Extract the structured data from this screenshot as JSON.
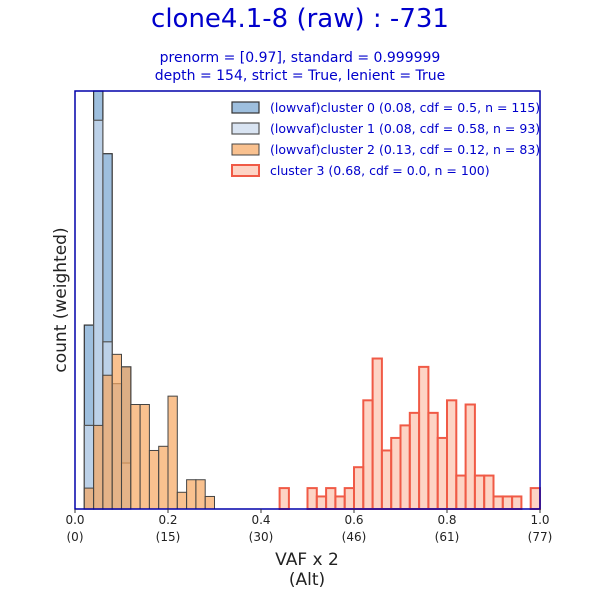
{
  "chart_data": {
    "type": "histogram",
    "title": "clone4.1-8 (raw) : -731",
    "subtitle_lines": [
      "prenorm = [0.97], standard = 0.999999",
      "depth = 154, strict = True, lenient = True"
    ],
    "xlabel_lines": [
      "VAF x 2",
      "(Alt)"
    ],
    "ylabel": "count (weighted)",
    "xlim": [
      0.0,
      1.0
    ],
    "ylim": [
      0,
      10.0
    ],
    "grid": false,
    "legend_position": "top-right",
    "bin_width": 0.02,
    "x_ticks": [
      {
        "value": 0.0,
        "label": "0.0",
        "sub": "(0)"
      },
      {
        "value": 0.2,
        "label": "0.2",
        "sub": "(15)"
      },
      {
        "value": 0.4,
        "label": "0.4",
        "sub": "(30)"
      },
      {
        "value": 0.6,
        "label": "0.6",
        "sub": "(46)"
      },
      {
        "value": 0.8,
        "label": "0.8",
        "sub": "(61)"
      },
      {
        "value": 1.0,
        "label": "1.0",
        "sub": "(77)"
      }
    ],
    "series": [
      {
        "name": "(lowvaf)cluster 0 (0.08, cdf = 0.5, n = 115)",
        "fill": "#8db4d8",
        "fill_opacity": 0.85,
        "stroke": "#333333",
        "stroke_width": 1.2,
        "bins": [
          [
            0.03,
            4.4
          ],
          [
            0.05,
            10.0
          ],
          [
            0.07,
            8.5
          ],
          [
            0.09,
            3.0
          ],
          [
            0.11,
            3.4
          ]
        ]
      },
      {
        "name": "(lowvaf)cluster 1 (0.08, cdf = 0.58, n = 93)",
        "fill": "#c9d8ec",
        "fill_opacity": 0.7,
        "stroke": "#555555",
        "stroke_width": 1.2,
        "bins": [
          [
            0.03,
            2.0
          ],
          [
            0.05,
            9.3
          ],
          [
            0.07,
            4.0
          ],
          [
            0.09,
            3.0
          ],
          [
            0.11,
            1.1
          ]
        ]
      },
      {
        "name": "(lowvaf)cluster 2 (0.13, cdf = 0.12, n = 83)",
        "fill": "#f7a660",
        "fill_opacity": 0.7,
        "stroke": "#444444",
        "stroke_width": 1.0,
        "bins": [
          [
            0.03,
            0.5
          ],
          [
            0.05,
            2.0
          ],
          [
            0.07,
            3.2
          ],
          [
            0.09,
            3.7
          ],
          [
            0.11,
            3.4
          ],
          [
            0.13,
            2.5
          ],
          [
            0.15,
            2.5
          ],
          [
            0.17,
            1.4
          ],
          [
            0.19,
            1.5
          ],
          [
            0.21,
            2.7
          ],
          [
            0.23,
            0.4
          ],
          [
            0.25,
            0.7
          ],
          [
            0.27,
            0.7
          ],
          [
            0.29,
            0.3
          ]
        ]
      },
      {
        "name": "cluster 3 (0.68, cdf = 0.0, n = 100)",
        "fill": "#fbb89e",
        "fill_opacity": 0.6,
        "stroke": "#f05a46",
        "stroke_width": 2.0,
        "bins": [
          [
            0.45,
            0.5
          ],
          [
            0.51,
            0.5
          ],
          [
            0.53,
            0.3
          ],
          [
            0.55,
            0.5
          ],
          [
            0.57,
            0.3
          ],
          [
            0.59,
            0.5
          ],
          [
            0.61,
            1.0
          ],
          [
            0.63,
            2.6
          ],
          [
            0.65,
            3.6
          ],
          [
            0.67,
            1.4
          ],
          [
            0.69,
            1.7
          ],
          [
            0.71,
            2.0
          ],
          [
            0.73,
            2.3
          ],
          [
            0.75,
            3.4
          ],
          [
            0.77,
            2.3
          ],
          [
            0.79,
            1.7
          ],
          [
            0.81,
            2.6
          ],
          [
            0.83,
            0.8
          ],
          [
            0.85,
            2.5
          ],
          [
            0.87,
            0.8
          ],
          [
            0.89,
            0.8
          ],
          [
            0.91,
            0.3
          ],
          [
            0.93,
            0.3
          ],
          [
            0.95,
            0.3
          ],
          [
            0.99,
            0.5
          ]
        ]
      }
    ],
    "colors": {
      "title": "#0000cc",
      "frame": "#0000aa",
      "text": "#222222"
    }
  }
}
